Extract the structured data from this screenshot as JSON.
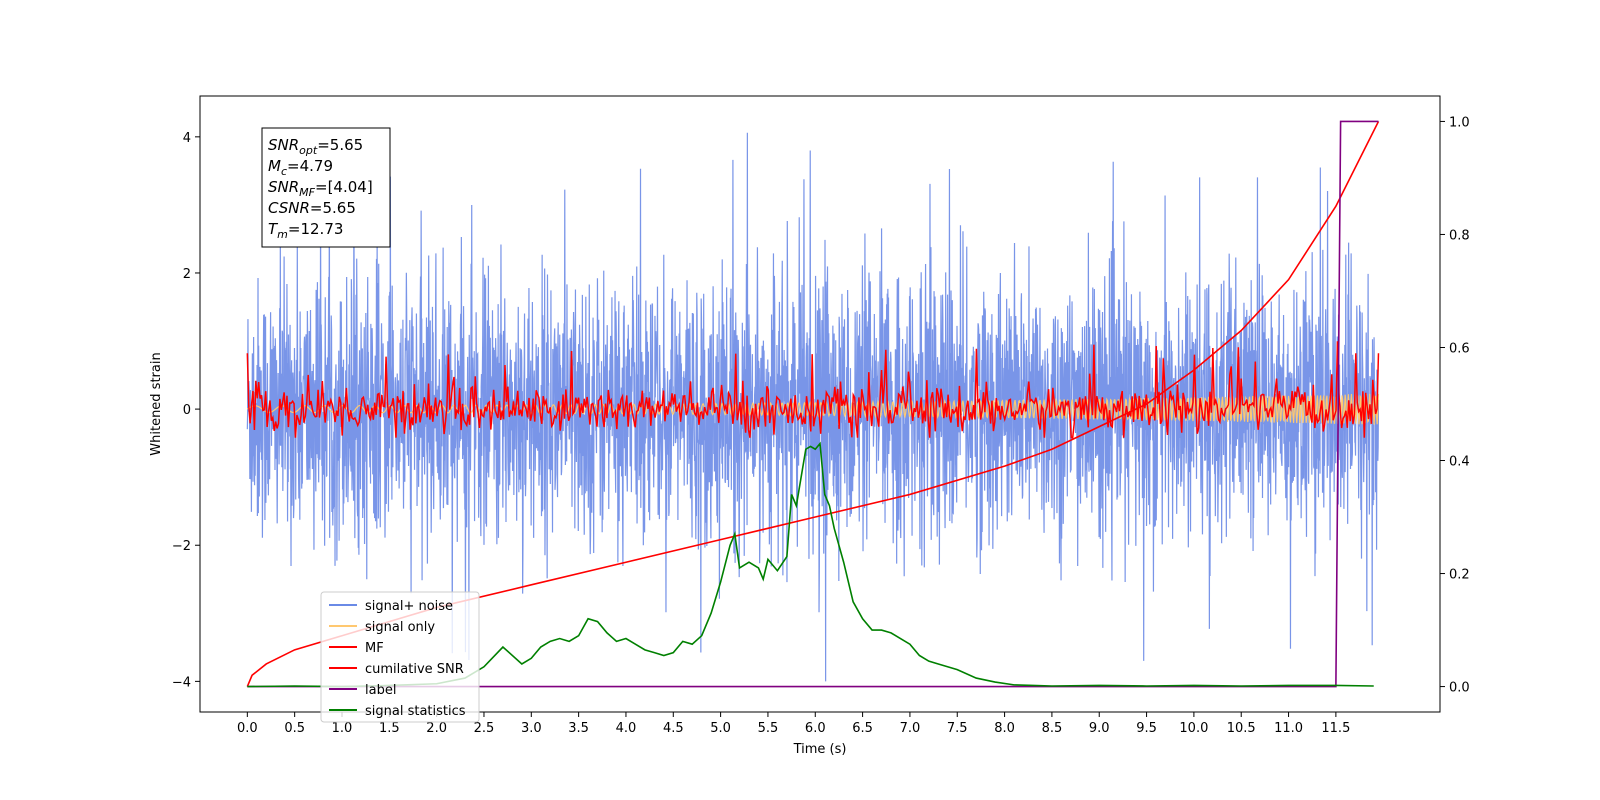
{
  "chart_data": {
    "type": "line",
    "xlabel": "Time (s)",
    "ylabel": "Whitened strain",
    "xlim": [
      -0.5,
      12.6
    ],
    "ylim": [
      -4.45,
      4.6
    ],
    "y2lim": [
      -0.045,
      1.045
    ],
    "xticks": [
      "0.0",
      "0.5",
      "1.0",
      "1.5",
      "2.0",
      "2.5",
      "3.0",
      "3.5",
      "4.0",
      "4.5",
      "5.0",
      "5.5",
      "6.0",
      "6.5",
      "7.0",
      "7.5",
      "8.0",
      "8.5",
      "9.0",
      "9.5",
      "10.0",
      "10.5",
      "11.0",
      "11.5"
    ],
    "yticks": [
      "4",
      "2",
      "0",
      "−2",
      "−4"
    ],
    "y2ticks": [
      "1.0",
      "0.8",
      "0.6",
      "0.4",
      "0.2",
      "0.0"
    ],
    "annotation": {
      "lines": [
        {
          "base": "SNR",
          "sub": "opt",
          "value": "=5.65"
        },
        {
          "base": "M",
          "sub": "c",
          "value": "=4.79"
        },
        {
          "base": "SNR",
          "sub": "MF",
          "value": "=[4.04]"
        },
        {
          "base": "CSNR",
          "sub": "",
          "value": "=5.65"
        },
        {
          "base": "T",
          "sub": "m",
          "value": "=12.73"
        }
      ]
    },
    "legend": {
      "position": "lower-left",
      "entries": [
        {
          "label": "signal+ noise",
          "color": "#6a8ae6"
        },
        {
          "label": "signal only",
          "color": "#ffc870"
        },
        {
          "label": "MF",
          "color": "#ff0000"
        },
        {
          "label": "cumilative SNR",
          "color": "#ff0000"
        },
        {
          "label": "label",
          "color": "#800080"
        },
        {
          "label": "signal statistics",
          "color": "#008000"
        }
      ]
    },
    "series": [
      {
        "name": "signal+ noise",
        "axis": "left",
        "color": "#6a8ae6",
        "description": "noise band approx -2.5..2.5 with spikes",
        "x_range": [
          0,
          11.95
        ]
      },
      {
        "name": "signal only",
        "axis": "left",
        "color": "#ffc870",
        "x_range": [
          0,
          11.95
        ]
      },
      {
        "name": "MF",
        "axis": "left",
        "color": "#ff0000",
        "x_range": [
          0,
          11.95
        ]
      },
      {
        "name": "cumilative SNR",
        "axis": "right",
        "color": "#ff0000",
        "x": [
          0,
          0.05,
          0.2,
          0.5,
          1.0,
          2.0,
          3.0,
          4.0,
          5.0,
          6.0,
          7.0,
          8.0,
          8.5,
          9.0,
          9.5,
          10.0,
          10.5,
          11.0,
          11.5,
          11.95
        ],
        "y": [
          0.0,
          0.02,
          0.04,
          0.065,
          0.09,
          0.14,
          0.18,
          0.22,
          0.26,
          0.3,
          0.34,
          0.39,
          0.42,
          0.46,
          0.5,
          0.56,
          0.63,
          0.72,
          0.85,
          1.0
        ]
      },
      {
        "name": "label",
        "axis": "right",
        "color": "#800080",
        "x": [
          0,
          11.5,
          11.55,
          11.95
        ],
        "y": [
          0,
          0,
          1,
          1
        ]
      },
      {
        "name": "signal statistics",
        "axis": "right",
        "color": "#008000",
        "x": [
          0,
          0.5,
          1.0,
          1.5,
          2.0,
          2.3,
          2.5,
          2.7,
          2.9,
          3.0,
          3.1,
          3.2,
          3.3,
          3.4,
          3.5,
          3.6,
          3.7,
          3.8,
          3.9,
          4.0,
          4.1,
          4.2,
          4.3,
          4.4,
          4.5,
          4.6,
          4.7,
          4.8,
          4.9,
          5.0,
          5.1,
          5.15,
          5.2,
          5.3,
          5.4,
          5.45,
          5.5,
          5.6,
          5.7,
          5.75,
          5.8,
          5.85,
          5.9,
          5.95,
          6.0,
          6.05,
          6.1,
          6.15,
          6.2,
          6.3,
          6.4,
          6.5,
          6.6,
          6.7,
          6.8,
          6.9,
          7.0,
          7.1,
          7.2,
          7.3,
          7.5,
          7.7,
          7.9,
          8.1,
          8.3,
          8.5,
          9.0,
          9.5,
          10.0,
          10.5,
          11.0,
          11.5,
          11.9
        ],
        "y": [
          0.0,
          0.001,
          0.0,
          0.002,
          0.005,
          0.015,
          0.035,
          0.07,
          0.04,
          0.05,
          0.07,
          0.08,
          0.085,
          0.08,
          0.09,
          0.12,
          0.115,
          0.095,
          0.08,
          0.085,
          0.075,
          0.065,
          0.06,
          0.055,
          0.06,
          0.08,
          0.075,
          0.09,
          0.13,
          0.185,
          0.25,
          0.27,
          0.21,
          0.22,
          0.21,
          0.19,
          0.225,
          0.205,
          0.23,
          0.34,
          0.32,
          0.37,
          0.42,
          0.425,
          0.42,
          0.43,
          0.34,
          0.32,
          0.28,
          0.22,
          0.15,
          0.12,
          0.1,
          0.1,
          0.095,
          0.085,
          0.075,
          0.055,
          0.045,
          0.04,
          0.03,
          0.015,
          0.008,
          0.003,
          0.002,
          0.001,
          0.002,
          0.001,
          0.002,
          0.001,
          0.002,
          0.002,
          0.001
        ]
      }
    ],
    "grid": false
  }
}
